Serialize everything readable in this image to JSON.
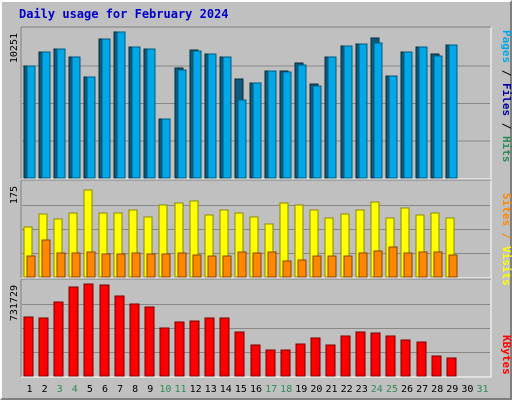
{
  "chart_data": {
    "title": "Daily usage for February 2024",
    "type": "bar",
    "days": [
      "1",
      "2",
      "3",
      "4",
      "5",
      "6",
      "7",
      "8",
      "9",
      "10",
      "11",
      "12",
      "13",
      "14",
      "15",
      "16",
      "17",
      "18",
      "19",
      "20",
      "21",
      "22",
      "23",
      "24",
      "25",
      "26",
      "27",
      "28",
      "29",
      "30",
      "31"
    ],
    "weekend_days": [
      "3",
      "4",
      "10",
      "11",
      "17",
      "18",
      "24",
      "25",
      "31"
    ],
    "panels": [
      {
        "id": "pages-files-hits",
        "axis_label": "10251",
        "ymax": 10251,
        "legend": [
          {
            "label": "Pages",
            "color": "#00a8e8"
          },
          {
            "label": "Files",
            "color": "#0000a0"
          },
          {
            "label": "Hits",
            "color": "#2e8b57"
          }
        ],
        "series": [
          {
            "name": "Hits",
            "color": "#0f5a7a",
            "values": [
              7830,
              8850,
              9050,
              8480,
              7060,
              9780,
              10251,
              9200,
              9030,
              4120,
              7700,
              8980,
              8680,
              8520,
              6950,
              6690,
              7540,
              7520,
              8040,
              6580,
              8480,
              9300,
              9400,
              9800,
              7140,
              8850,
              9200,
              8680,
              9330,
              0,
              0
            ]
          },
          {
            "name": "Pages",
            "color": "#00a8e8",
            "values": [
              7830,
              8850,
              9050,
              8480,
              7060,
              9780,
              10251,
              9200,
              9030,
              4120,
              7600,
              8900,
              8680,
              8520,
              5450,
              6690,
              7540,
              7450,
              7960,
              6480,
              8480,
              9300,
              9400,
              9450,
              7140,
              8850,
              9200,
              8580,
              9330,
              0,
              0
            ]
          }
        ]
      },
      {
        "id": "visits-sites",
        "axis_label": "175",
        "ymax": 175,
        "legend": [
          {
            "label": "Sites",
            "color": "#ff8800"
          },
          {
            "label": "/",
            "color": "#ff8800"
          },
          {
            "label": "Visits",
            "color": "#ffff00"
          }
        ],
        "series": [
          {
            "name": "Visits",
            "color": "#ffff00",
            "values": [
              95,
              120,
              110,
              122,
              165,
              122,
              122,
              128,
              115,
              137,
              140,
              145,
              117,
              127,
              122,
              115,
              100,
              140,
              137,
              128,
              113,
              120,
              128,
              142,
              112,
              132,
              118,
              122,
              113,
              0,
              0
            ]
          },
          {
            "name": "Sites",
            "color": "#ff8800",
            "values": [
              40,
              70,
              45,
              45,
              47,
              44,
              44,
              45,
              44,
              43,
              45,
              42,
              40,
              40,
              47,
              45,
              47,
              30,
              32,
              40,
              40,
              40,
              45,
              50,
              57,
              45,
              47,
              47,
              42,
              0,
              0
            ]
          }
        ]
      },
      {
        "id": "kbytes",
        "axis_label": "731729",
        "ymax": 731729,
        "legend": [
          {
            "label": "KBytes",
            "color": "#ff0000"
          }
        ],
        "series": [
          {
            "name": "KBytes",
            "color": "#ff0000",
            "values": [
              470000,
              460000,
              590000,
              710000,
              730000,
              720000,
              640000,
              570000,
              550000,
              380000,
              430000,
              435000,
              465000,
              460000,
              350000,
              250000,
              205000,
              210000,
              255000,
              300000,
              250000,
              320000,
              350000,
              340000,
              315000,
              285000,
              270000,
              160000,
              140000,
              0,
              0
            ]
          }
        ]
      }
    ]
  }
}
